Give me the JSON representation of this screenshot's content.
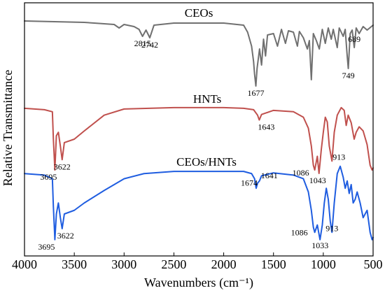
{
  "chart_data": {
    "type": "line",
    "xlabel": "Wavenumbers (cm⁻¹)",
    "ylabel": "Relative Transmittance",
    "xlim": [
      4000,
      500
    ],
    "x_reversed": true,
    "x_ticks": [
      4000,
      3500,
      3000,
      2500,
      2000,
      1500,
      1000,
      500
    ],
    "y_ticks_shown": false,
    "grid": false,
    "legend": "none",
    "series": [
      {
        "name": "CEOs",
        "color": "#707070",
        "points": [
          [
            4000,
            0.98
          ],
          [
            3700,
            0.97
          ],
          [
            3400,
            0.96
          ],
          [
            3300,
            0.95
          ],
          [
            3100,
            0.93
          ],
          [
            3050,
            0.88
          ],
          [
            3000,
            0.93
          ],
          [
            2900,
            0.9
          ],
          [
            2850,
            0.86
          ],
          [
            2815,
            0.76
          ],
          [
            2780,
            0.85
          ],
          [
            2742,
            0.74
          ],
          [
            2700,
            0.92
          ],
          [
            2500,
            0.95
          ],
          [
            2200,
            0.95
          ],
          [
            2000,
            0.95
          ],
          [
            1800,
            0.92
          ],
          [
            1760,
            0.82
          ],
          [
            1720,
            0.62
          ],
          [
            1700,
            0.4
          ],
          [
            1690,
            0.22
          ],
          [
            1677,
            0.05
          ],
          [
            1665,
            0.3
          ],
          [
            1640,
            0.58
          ],
          [
            1620,
            0.35
          ],
          [
            1600,
            0.72
          ],
          [
            1580,
            0.48
          ],
          [
            1560,
            0.78
          ],
          [
            1500,
            0.8
          ],
          [
            1460,
            0.62
          ],
          [
            1420,
            0.86
          ],
          [
            1380,
            0.66
          ],
          [
            1350,
            0.84
          ],
          [
            1300,
            0.82
          ],
          [
            1260,
            0.62
          ],
          [
            1240,
            0.83
          ],
          [
            1200,
            0.74
          ],
          [
            1160,
            0.58
          ],
          [
            1140,
            0.7
          ],
          [
            1120,
            0.14
          ],
          [
            1100,
            0.8
          ],
          [
            1070,
            0.7
          ],
          [
            1040,
            0.58
          ],
          [
            1010,
            0.86
          ],
          [
            980,
            0.66
          ],
          [
            950,
            0.88
          ],
          [
            920,
            0.72
          ],
          [
            900,
            0.86
          ],
          [
            860,
            0.6
          ],
          [
            840,
            0.88
          ],
          [
            800,
            0.76
          ],
          [
            780,
            0.86
          ],
          [
            760,
            0.48
          ],
          [
            749,
            0.3
          ],
          [
            730,
            0.8
          ],
          [
            710,
            0.85
          ],
          [
            689,
            0.6
          ],
          [
            670,
            0.88
          ],
          [
            640,
            0.8
          ],
          [
            600,
            0.9
          ],
          [
            560,
            0.85
          ],
          [
            500,
            0.92
          ]
        ]
      },
      {
        "name": "HNTs",
        "color": "#c0504d",
        "points": [
          [
            4000,
            0.95
          ],
          [
            3800,
            0.93
          ],
          [
            3720,
            0.9
          ],
          [
            3710,
            0.5
          ],
          [
            3695,
            0.05
          ],
          [
            3680,
            0.55
          ],
          [
            3660,
            0.6
          ],
          [
            3640,
            0.4
          ],
          [
            3622,
            0.2
          ],
          [
            3600,
            0.45
          ],
          [
            3500,
            0.5
          ],
          [
            3400,
            0.62
          ],
          [
            3200,
            0.85
          ],
          [
            3000,
            0.94
          ],
          [
            2500,
            0.96
          ],
          [
            2000,
            0.96
          ],
          [
            1800,
            0.95
          ],
          [
            1700,
            0.93
          ],
          [
            1660,
            0.85
          ],
          [
            1643,
            0.78
          ],
          [
            1620,
            0.86
          ],
          [
            1500,
            0.92
          ],
          [
            1300,
            0.9
          ],
          [
            1200,
            0.82
          ],
          [
            1150,
            0.66
          ],
          [
            1120,
            0.4
          ],
          [
            1100,
            0.12
          ],
          [
            1086,
            0.05
          ],
          [
            1060,
            0.25
          ],
          [
            1043,
            0.0
          ],
          [
            1020,
            0.35
          ],
          [
            1000,
            0.6
          ],
          [
            980,
            0.82
          ],
          [
            960,
            0.75
          ],
          [
            940,
            0.4
          ],
          [
            913,
            0.18
          ],
          [
            890,
            0.6
          ],
          [
            860,
            0.85
          ],
          [
            820,
            0.96
          ],
          [
            790,
            0.92
          ],
          [
            770,
            0.7
          ],
          [
            750,
            0.85
          ],
          [
            720,
            0.74
          ],
          [
            690,
            0.5
          ],
          [
            670,
            0.6
          ],
          [
            640,
            0.68
          ],
          [
            600,
            0.62
          ],
          [
            560,
            0.42
          ],
          [
            530,
            0.12
          ],
          [
            510,
            0.05
          ],
          [
            500,
            0.08
          ]
        ]
      },
      {
        "name": "CEOs/HNTs",
        "color": "#1f5de0",
        "points": [
          [
            4000,
            0.95
          ],
          [
            3800,
            0.93
          ],
          [
            3720,
            0.88
          ],
          [
            3710,
            0.5
          ],
          [
            3695,
            0.05
          ],
          [
            3680,
            0.4
          ],
          [
            3660,
            0.55
          ],
          [
            3640,
            0.35
          ],
          [
            3622,
            0.2
          ],
          [
            3600,
            0.4
          ],
          [
            3500,
            0.45
          ],
          [
            3400,
            0.55
          ],
          [
            3200,
            0.72
          ],
          [
            3000,
            0.88
          ],
          [
            2800,
            0.95
          ],
          [
            2500,
            0.98
          ],
          [
            2000,
            0.98
          ],
          [
            1800,
            0.98
          ],
          [
            1720,
            0.95
          ],
          [
            1690,
            0.88
          ],
          [
            1674,
            0.75
          ],
          [
            1660,
            0.82
          ],
          [
            1641,
            0.85
          ],
          [
            1620,
            0.92
          ],
          [
            1500,
            0.96
          ],
          [
            1300,
            0.93
          ],
          [
            1200,
            0.88
          ],
          [
            1150,
            0.7
          ],
          [
            1120,
            0.45
          ],
          [
            1100,
            0.22
          ],
          [
            1086,
            0.15
          ],
          [
            1060,
            0.25
          ],
          [
            1033,
            0.05
          ],
          [
            1010,
            0.25
          ],
          [
            990,
            0.55
          ],
          [
            970,
            0.75
          ],
          [
            950,
            0.6
          ],
          [
            930,
            0.3
          ],
          [
            913,
            0.15
          ],
          [
            890,
            0.55
          ],
          [
            860,
            0.95
          ],
          [
            830,
            1.05
          ],
          [
            800,
            0.9
          ],
          [
            780,
            0.75
          ],
          [
            760,
            0.85
          ],
          [
            740,
            0.68
          ],
          [
            720,
            0.8
          ],
          [
            700,
            0.55
          ],
          [
            680,
            0.6
          ],
          [
            660,
            0.7
          ],
          [
            630,
            0.55
          ],
          [
            600,
            0.35
          ],
          [
            560,
            0.45
          ],
          [
            530,
            0.15
          ],
          [
            510,
            0.05
          ],
          [
            500,
            0.08
          ]
        ]
      }
    ],
    "annotations": {
      "CEOs": [
        {
          "label": "2815",
          "x": 2815
        },
        {
          "label": "2742",
          "x": 2742
        },
        {
          "label": "1677",
          "x": 1677
        },
        {
          "label": "749",
          "x": 749
        },
        {
          "label": "689",
          "x": 689
        }
      ],
      "HNTs": [
        {
          "label": "3695",
          "x": 3695
        },
        {
          "label": "3622",
          "x": 3622
        },
        {
          "label": "1643",
          "x": 1643
        },
        {
          "label": "1086",
          "x": 1086
        },
        {
          "label": "1043",
          "x": 1043
        },
        {
          "label": "913",
          "x": 913
        }
      ],
      "CEOs/HNTs": [
        {
          "label": "3695",
          "x": 3695
        },
        {
          "label": "3622",
          "x": 3622
        },
        {
          "label": "1674",
          "x": 1674
        },
        {
          "label": "1641",
          "x": 1641
        },
        {
          "label": "1086",
          "x": 1086
        },
        {
          "label": "913",
          "x": 913
        },
        {
          "label": "1033",
          "x": 1033
        }
      ]
    }
  }
}
